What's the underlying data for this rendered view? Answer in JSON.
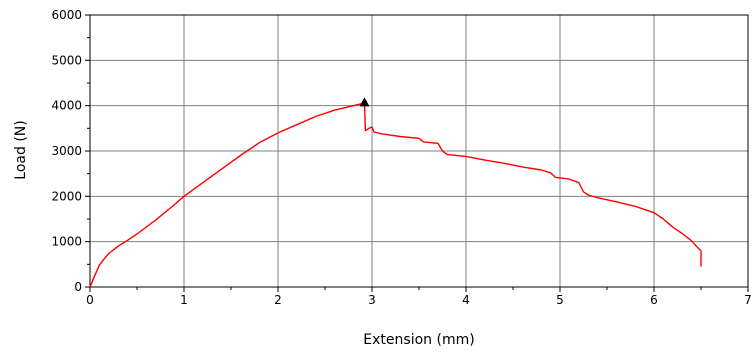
{
  "chart_data": {
    "type": "line",
    "xlabel": "Extension (mm)",
    "ylabel": "Load (N)",
    "xlim": [
      0,
      7
    ],
    "ylim": [
      0,
      6000
    ],
    "x_ticks": [
      0,
      1,
      2,
      3,
      4,
      5,
      6,
      7
    ],
    "x_tick_labels": [
      "0",
      "1",
      "2",
      "3",
      "4",
      "5",
      "6",
      "7"
    ],
    "y_ticks": [
      0,
      1000,
      2000,
      3000,
      4000,
      5000,
      6000
    ],
    "y_tick_labels": [
      "0",
      "1000",
      "2000",
      "3000",
      "4000",
      "5000",
      "6000"
    ],
    "grid": true,
    "line_color": "#ff0000",
    "peak_marker": {
      "x": 2.92,
      "y": 4050,
      "shape": "triangle"
    },
    "series": [
      {
        "points": [
          [
            0,
            0
          ],
          [
            0.05,
            250
          ],
          [
            0.1,
            480
          ],
          [
            0.15,
            620
          ],
          [
            0.2,
            740
          ],
          [
            0.3,
            900
          ],
          [
            0.4,
            1030
          ],
          [
            0.5,
            1170
          ],
          [
            0.7,
            1480
          ],
          [
            0.9,
            1820
          ],
          [
            1.0,
            2000
          ],
          [
            1.2,
            2300
          ],
          [
            1.4,
            2600
          ],
          [
            1.6,
            2900
          ],
          [
            1.8,
            3180
          ],
          [
            2.0,
            3400
          ],
          [
            2.2,
            3580
          ],
          [
            2.4,
            3760
          ],
          [
            2.6,
            3900
          ],
          [
            2.8,
            4000
          ],
          [
            2.9,
            4050
          ],
          [
            2.92,
            4040
          ],
          [
            2.93,
            3450
          ],
          [
            2.97,
            3500
          ],
          [
            3.0,
            3530
          ],
          [
            3.02,
            3420
          ],
          [
            3.1,
            3380
          ],
          [
            3.3,
            3320
          ],
          [
            3.5,
            3280
          ],
          [
            3.55,
            3200
          ],
          [
            3.7,
            3170
          ],
          [
            3.75,
            3000
          ],
          [
            3.8,
            2920
          ],
          [
            4.0,
            2880
          ],
          [
            4.2,
            2800
          ],
          [
            4.4,
            2730
          ],
          [
            4.6,
            2650
          ],
          [
            4.8,
            2580
          ],
          [
            4.9,
            2520
          ],
          [
            4.95,
            2420
          ],
          [
            5.1,
            2380
          ],
          [
            5.2,
            2300
          ],
          [
            5.25,
            2100
          ],
          [
            5.3,
            2030
          ],
          [
            5.4,
            1970
          ],
          [
            5.6,
            1880
          ],
          [
            5.8,
            1780
          ],
          [
            6.0,
            1640
          ],
          [
            6.1,
            1500
          ],
          [
            6.2,
            1320
          ],
          [
            6.3,
            1180
          ],
          [
            6.4,
            1020
          ],
          [
            6.45,
            900
          ],
          [
            6.5,
            800
          ],
          [
            6.5,
            450
          ]
        ]
      }
    ]
  }
}
